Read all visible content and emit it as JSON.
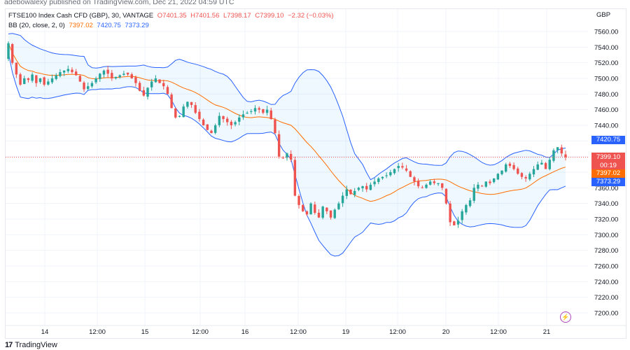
{
  "header": {
    "published": "adebowalexy published on TradingView.com, Dec 21, 2022 04:59 UTC"
  },
  "legend": {
    "symbol": "FTSE100 Index Cash CFD (GBP), 30, VANTAGE",
    "open": "O7401.35",
    "high": "H7401.56",
    "low": "L7398.17",
    "close": "C7399.10",
    "change": "−2.32 (−0.03%)",
    "bb_label": "BB (20, close, 2, 0)",
    "bb_basis": "7397.02",
    "bb_upper": "7420.75",
    "bb_lower": "7373.29"
  },
  "price_scale": {
    "currency": "GBP",
    "ticks": [
      "7560.00",
      "7540.00",
      "7520.00",
      "7500.00",
      "7480.00",
      "7460.00",
      "7440.00",
      "7420.00",
      "7400.00",
      "7380.00",
      "7360.00",
      "7340.00",
      "7320.00",
      "7300.00",
      "7280.00",
      "7260.00",
      "7240.00",
      "7220.00",
      "7200.00"
    ],
    "tags": {
      "upper": "7420.75",
      "last": "7399.10",
      "countdown": "00:19",
      "basis": "7397.02",
      "lower": "7373.29"
    }
  },
  "time_scale": {
    "ticks": [
      {
        "label": "14",
        "x": 64
      },
      {
        "label": "12:00",
        "x": 139
      },
      {
        "label": "15",
        "x": 207
      },
      {
        "label": "12:00",
        "x": 286
      },
      {
        "label": "16",
        "x": 350
      },
      {
        "label": "12:00",
        "x": 426
      },
      {
        "label": "19",
        "x": 494
      },
      {
        "label": "12:00",
        "x": 568
      },
      {
        "label": "20",
        "x": 637
      },
      {
        "label": "12:00",
        "x": 712
      },
      {
        "label": "21",
        "x": 781
      }
    ]
  },
  "colors": {
    "up": "#26a69a",
    "down": "#ef5350",
    "bb_band": "#2962ff",
    "bb_basis": "#ff6d00",
    "bb_fill": "rgba(33,150,243,0.07)",
    "last_price": "#ef5350"
  },
  "branding": {
    "logo_text": "TradingView"
  },
  "chart_data": {
    "type": "candlestick",
    "title": "FTSE100 Index Cash CFD (GBP), 30, VANTAGE",
    "xlabel": "",
    "ylabel": "GBP",
    "ylim": [
      7190,
      7570
    ],
    "grid": true,
    "x_ticks": [
      "14",
      "12:00",
      "15",
      "12:00",
      "16",
      "12:00",
      "19",
      "12:00",
      "20",
      "12:00",
      "21"
    ],
    "indicators": [
      {
        "name": "BB (20, close, 2, 0)",
        "basis": 7397.02,
        "upper": 7420.75,
        "lower": 7373.29
      }
    ],
    "last": {
      "open": 7401.35,
      "high": 7401.56,
      "low": 7398.17,
      "close": 7399.1,
      "change": -2.32,
      "change_pct": -0.03
    },
    "close_path": [
      7545,
      7520,
      7505,
      7492,
      7500,
      7498,
      7505,
      7494,
      7500,
      7492,
      7496,
      7500,
      7504,
      7508,
      7510,
      7512,
      7508,
      7504,
      7496,
      7486,
      7490,
      7494,
      7500,
      7506,
      7510,
      7506,
      7500,
      7502,
      7504,
      7506,
      7505,
      7500,
      7494,
      7484,
      7478,
      7488,
      7496,
      7500,
      7494,
      7490,
      7480,
      7462,
      7450,
      7452,
      7464,
      7470,
      7466,
      7456,
      7448,
      7440,
      7434,
      7430,
      7440,
      7452,
      7448,
      7444,
      7440,
      7444,
      7450,
      7454,
      7456,
      7458,
      7462,
      7460,
      7456,
      7460,
      7448,
      7430,
      7400,
      7398,
      7404,
      7396,
      7350,
      7338,
      7330,
      7326,
      7340,
      7328,
      7322,
      7336,
      7330,
      7322,
      7332,
      7340,
      7350,
      7358,
      7352,
      7356,
      7360,
      7362,
      7358,
      7364,
      7368,
      7372,
      7374,
      7376,
      7380,
      7384,
      7388,
      7386,
      7382,
      7374,
      7368,
      7362,
      7360,
      7364,
      7368,
      7366,
      7366,
      7360,
      7340,
      7316,
      7312,
      7318,
      7330,
      7338,
      7344,
      7360,
      7364,
      7362,
      7368,
      7366,
      7372,
      7378,
      7382,
      7390,
      7388,
      7384,
      7378,
      7374,
      7372,
      7378,
      7384,
      7390,
      7392,
      7384,
      7396,
      7408,
      7412,
      7404,
      7399.1
    ]
  }
}
